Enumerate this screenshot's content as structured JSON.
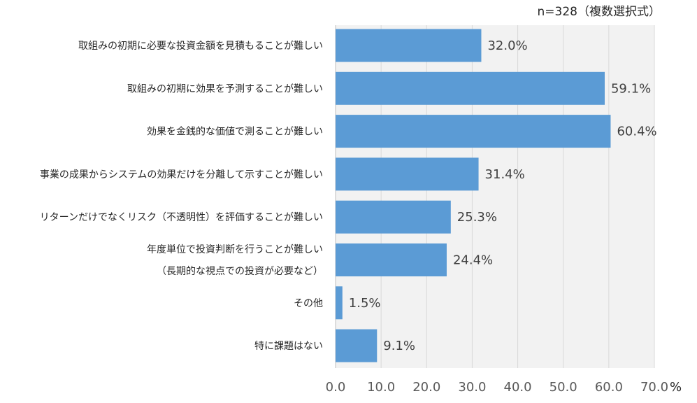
{
  "note": "n=328（複数選択式）",
  "chart_data": {
    "type": "bar",
    "orientation": "horizontal",
    "unit": "%",
    "xlim": [
      0,
      70
    ],
    "xticks": [
      "0.0",
      "10.0",
      "20.0",
      "30.0",
      "40.0",
      "50.0",
      "60.0",
      "70.0"
    ],
    "grid": true,
    "bar_color": "#5b9bd5",
    "plot_bg": "#f2f2f2",
    "categories": [
      [
        "取組みの初期に必要な投資金額を見積もることが難しい"
      ],
      [
        "取組みの初期に効果を予測することが難しい"
      ],
      [
        "効果を金銭的な価値で測ることが難しい"
      ],
      [
        "事業の成果からシステムの効果だけを分離して示すことが難しい"
      ],
      [
        "リターンだけでなくリスク（不透明性）を評価することが難しい"
      ],
      [
        "年度単位で投資判断を行うことが難しい",
        "（長期的な視点での投資が必要など）"
      ],
      [
        "その他"
      ],
      [
        "特に課題はない"
      ]
    ],
    "values": [
      32.0,
      59.1,
      60.4,
      31.4,
      25.3,
      24.4,
      1.5,
      9.1
    ],
    "value_labels": [
      "32.0%",
      "59.1%",
      "60.4%",
      "31.4%",
      "25.3%",
      "24.4%",
      "1.5%",
      "9.1%"
    ]
  }
}
